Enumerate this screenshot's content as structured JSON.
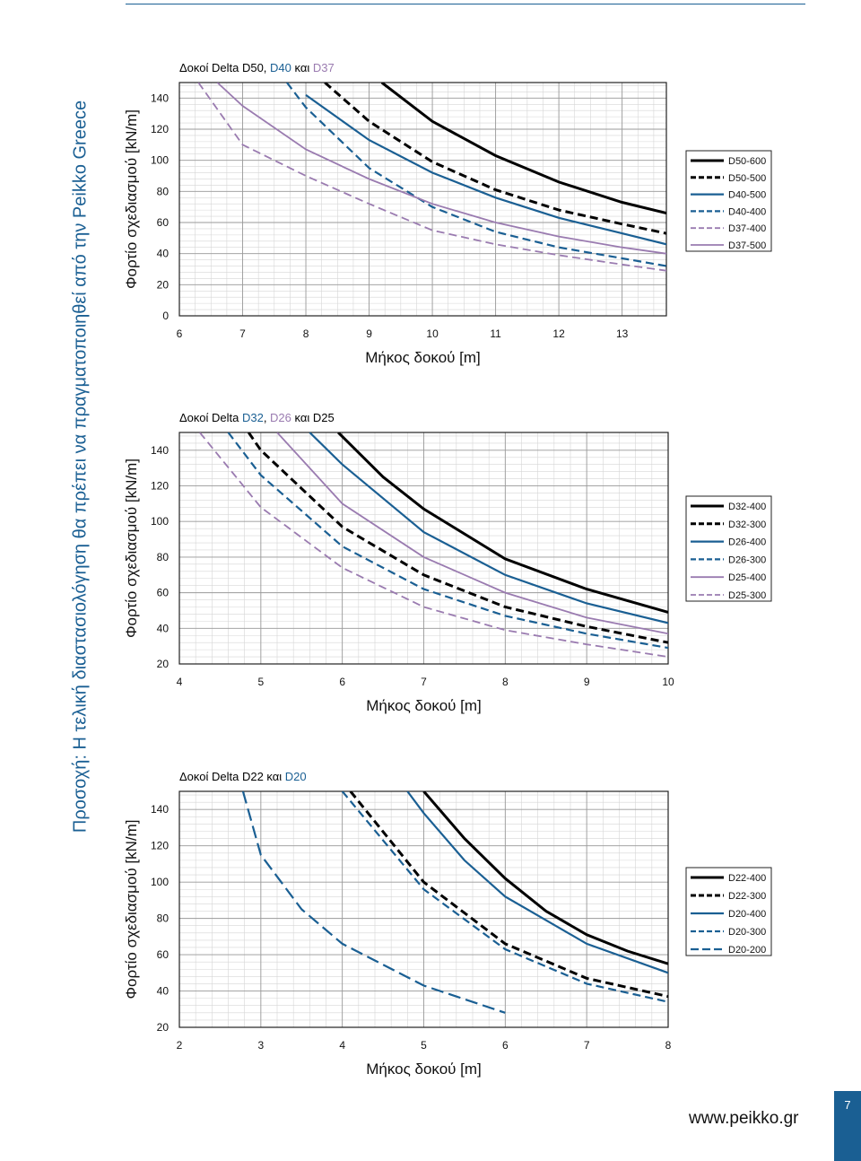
{
  "page": {
    "side_note": "Προσοχή: Η τελική διαστασιολόγηση θα πρέπει να πραγματοποιηθεί από την Peikko Greece",
    "website": "www.peikko.gr",
    "page_number": "7"
  },
  "colors": {
    "black": "#000000",
    "blue": "#1a5f93",
    "purple": "#9a7bb0",
    "accent": "#1a5f93"
  },
  "chart_data": [
    {
      "type": "line",
      "title_parts": [
        {
          "text": "Δοκοί Delta D50, ",
          "color": "black"
        },
        {
          "text": "D40",
          "color": "blue"
        },
        {
          "text": " και ",
          "color": "black"
        },
        {
          "text": "D37",
          "color": "purple"
        }
      ],
      "xlabel": "Μήκος δοκού [m]",
      "ylabel": "Φορτίο σχεδιασμού [kN/m]",
      "xlim": [
        6,
        13.7
      ],
      "ylim": [
        0,
        150
      ],
      "xticks": [
        "6",
        "7",
        "8",
        "9",
        "10",
        "11",
        "12",
        "13"
      ],
      "yticks": [
        "0",
        "20",
        "40",
        "60",
        "80",
        "100",
        "120",
        "140"
      ],
      "grid": true,
      "legend_position": "right",
      "series": [
        {
          "name": "D50-600",
          "color": "black",
          "dash": "solid",
          "x": [
            9.2,
            10,
            11,
            12,
            13,
            13.7
          ],
          "y": [
            150,
            125,
            103,
            86,
            73,
            66
          ]
        },
        {
          "name": "D50-500",
          "color": "black",
          "dash": "dashed",
          "x": [
            8.3,
            9,
            10,
            11,
            12,
            13,
            13.7
          ],
          "y": [
            150,
            125,
            99,
            81,
            68,
            59,
            53
          ]
        },
        {
          "name": "D40-500",
          "color": "blue",
          "dash": "solid",
          "x": [
            8,
            9,
            10,
            11,
            12,
            13,
            13.7
          ],
          "y": [
            142,
            113,
            92,
            76,
            63,
            53,
            46
          ]
        },
        {
          "name": "D40-400",
          "color": "blue",
          "dash": "dashed",
          "x": [
            7.7,
            8,
            9,
            10,
            11,
            12,
            13,
            13.7
          ],
          "y": [
            150,
            134,
            95,
            70,
            54,
            44,
            37,
            32
          ]
        },
        {
          "name": "D37-400",
          "color": "purple",
          "dash": "dashed",
          "x": [
            6.3,
            7,
            8,
            9,
            10,
            11,
            12,
            13,
            13.7
          ],
          "y": [
            150,
            110,
            90,
            72,
            55,
            46,
            39,
            33,
            29
          ]
        },
        {
          "name": "D37-500",
          "color": "purple",
          "dash": "solid",
          "x": [
            6.6,
            7,
            8,
            9,
            10,
            11,
            12,
            13,
            13.7
          ],
          "y": [
            150,
            135,
            107,
            88,
            72,
            60,
            51,
            44,
            40
          ]
        }
      ]
    },
    {
      "type": "line",
      "title_parts": [
        {
          "text": "Δοκοί Delta ",
          "color": "black"
        },
        {
          "text": "D32",
          "color": "blue"
        },
        {
          "text": ", ",
          "color": "black"
        },
        {
          "text": "D26",
          "color": "purple"
        },
        {
          "text": " και D25",
          "color": "black"
        }
      ],
      "xlabel": "Μήκος δοκού [m]",
      "ylabel": "Φορτίο σχεδιασμού [kN/m]",
      "xlim": [
        4,
        10
      ],
      "ylim": [
        20,
        150
      ],
      "xticks": [
        "4",
        "5",
        "6",
        "7",
        "8",
        "9",
        "10"
      ],
      "yticks": [
        "20",
        "40",
        "60",
        "80",
        "100",
        "120",
        "140"
      ],
      "grid": true,
      "legend_position": "right",
      "series": [
        {
          "name": "D32-400",
          "color": "black",
          "dash": "solid",
          "x": [
            5.95,
            6.5,
            7,
            8,
            9,
            10
          ],
          "y": [
            150,
            125,
            107,
            79,
            62,
            49
          ]
        },
        {
          "name": "D32-300",
          "color": "black",
          "dash": "dashed",
          "x": [
            4.85,
            5,
            6,
            7,
            8,
            9,
            10
          ],
          "y": [
            150,
            140,
            97,
            70,
            52,
            41,
            32
          ]
        },
        {
          "name": "D26-400",
          "color": "blue",
          "dash": "solid",
          "x": [
            5.6,
            6,
            7,
            8,
            9,
            10
          ],
          "y": [
            150,
            132,
            94,
            70,
            54,
            43
          ]
        },
        {
          "name": "D26-300",
          "color": "blue",
          "dash": "dashed",
          "x": [
            4.6,
            5,
            6,
            7,
            8,
            9,
            10
          ],
          "y": [
            150,
            126,
            86,
            62,
            47,
            37,
            29
          ]
        },
        {
          "name": "D25-400",
          "color": "purple",
          "dash": "solid",
          "x": [
            5.2,
            6,
            7,
            8,
            9,
            10
          ],
          "y": [
            150,
            110,
            80,
            60,
            46,
            37
          ]
        },
        {
          "name": "D25-300",
          "color": "purple",
          "dash": "dashed",
          "x": [
            4.25,
            5,
            6,
            7,
            8,
            9,
            10
          ],
          "y": [
            150,
            108,
            74,
            52,
            39,
            31,
            24
          ]
        }
      ]
    },
    {
      "type": "line",
      "title_parts": [
        {
          "text": "Δοκοί Delta D22 και ",
          "color": "black"
        },
        {
          "text": "D20",
          "color": "blue"
        }
      ],
      "xlabel": "Μήκος δοκού [m]",
      "ylabel": "Φορτίο σχεδιασμού [kN/m]",
      "xlim": [
        2,
        8
      ],
      "ylim": [
        20,
        150
      ],
      "xticks": [
        "2",
        "3",
        "4",
        "5",
        "6",
        "7",
        "8"
      ],
      "yticks": [
        "20",
        "40",
        "60",
        "80",
        "100",
        "120",
        "140"
      ],
      "grid": true,
      "legend_position": "right",
      "series": [
        {
          "name": "D22-400",
          "color": "black",
          "dash": "solid",
          "x": [
            5,
            5.5,
            6,
            6.5,
            7,
            7.5,
            8
          ],
          "y": [
            150,
            124,
            102,
            84,
            71,
            62,
            55
          ]
        },
        {
          "name": "D22-300",
          "color": "black",
          "dash": "dashed",
          "x": [
            4.1,
            5,
            6,
            7,
            8
          ],
          "y": [
            150,
            100,
            66,
            47,
            37
          ]
        },
        {
          "name": "D20-400",
          "color": "blue",
          "dash": "solid",
          "x": [
            4.8,
            5,
            5.5,
            6,
            7,
            8
          ],
          "y": [
            150,
            138,
            112,
            92,
            66,
            50
          ]
        },
        {
          "name": "D20-300",
          "color": "blue",
          "dash": "dashed",
          "x": [
            4.0,
            5,
            6,
            7,
            8
          ],
          "y": [
            150,
            96,
            63,
            44,
            34
          ]
        },
        {
          "name": "D20-200",
          "color": "blue",
          "dash": "longdash",
          "x": [
            2.78,
            3,
            3.5,
            4,
            5,
            6
          ],
          "y": [
            150,
            115,
            85,
            66,
            43,
            28
          ]
        }
      ]
    }
  ]
}
